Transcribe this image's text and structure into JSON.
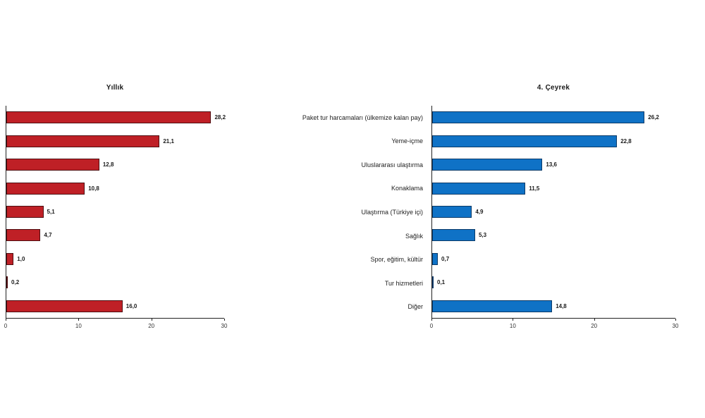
{
  "page": {
    "background": "#ffffff"
  },
  "categories": [
    "Paket tur harcamaları (ülkemize kalan pay)",
    "Yeme-içme",
    "Uluslararası ulaştırma",
    "Konaklama",
    "Ulaştırma (Türkiye içi)",
    "Sağlık",
    "Spor, eğitim, kültür",
    "Tur hizmetleri",
    "Diğer"
  ],
  "chart_data": [
    {
      "type": "bar",
      "orientation": "horizontal",
      "title": "Yıllık",
      "categories": [
        "Paket tur harcamaları (ülkemize kalan pay)",
        "Yeme-içme",
        "Uluslararası ulaştırma",
        "Konaklama",
        "Ulaştırma (Türkiye içi)",
        "Sağlık",
        "Spor, eğitim, kültür",
        "Tur hizmetleri",
        "Diğer"
      ],
      "values": [
        28.2,
        21.1,
        12.8,
        10.8,
        5.1,
        4.7,
        1.0,
        0.2,
        16.0
      ],
      "value_labels": [
        "28,2",
        "21,1",
        "12,8",
        "10,8",
        "5,1",
        "4,7",
        "1,0",
        "0,2",
        "16,0"
      ],
      "xlim": [
        0,
        30
      ],
      "x_ticks": [
        0,
        10,
        20,
        30
      ],
      "grid": false,
      "legend": "none",
      "bar_color": "#bf2026",
      "bar_border_color": "#4f0e11"
    },
    {
      "type": "bar",
      "orientation": "horizontal",
      "title": "4. Çeyrek",
      "categories": [
        "Paket tur harcamaları (ülkemize kalan pay)",
        "Yeme-içme",
        "Uluslararası ulaştırma",
        "Konaklama",
        "Ulaştırma (Türkiye içi)",
        "Sağlık",
        "Spor, eğitim, kültür",
        "Tur hizmetleri",
        "Diğer"
      ],
      "values": [
        26.2,
        22.8,
        13.6,
        11.5,
        4.9,
        5.3,
        0.7,
        0.1,
        14.8
      ],
      "value_labels": [
        "26,2",
        "22,8",
        "13,6",
        "11,5",
        "4,9",
        "5,3",
        "0,7",
        "0,1",
        "14,8"
      ],
      "xlim": [
        0,
        30
      ],
      "x_ticks": [
        0,
        10,
        20,
        30
      ],
      "grid": false,
      "legend": "none",
      "bar_color": "#0f72c6",
      "bar_border_color": "#0b3a68"
    }
  ]
}
